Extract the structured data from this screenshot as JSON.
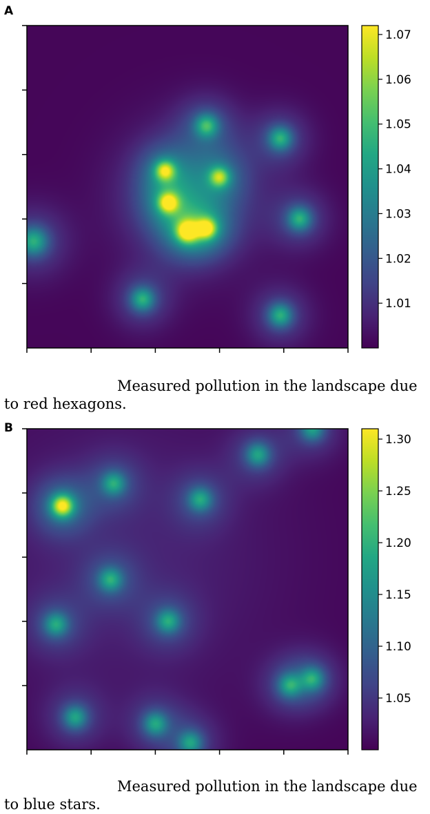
{
  "panels": [
    {
      "label": "A",
      "caption_lines": [
        "Measured pollution in the landscape due",
        "to red hexagons."
      ],
      "colormap": "viridis",
      "chart_data": {
        "type": "heatmap",
        "xlim": [
          0,
          1
        ],
        "ylim": [
          0,
          1
        ],
        "x_ticks": [
          0,
          0.2,
          0.4,
          0.6,
          0.8,
          1.0
        ],
        "y_ticks": [
          0.2,
          0.4,
          0.6,
          0.8,
          1.0
        ],
        "tick_labels_shown": false,
        "colorbar": {
          "vmin": 1.0,
          "vmax": 1.072,
          "ticks": [
            1.01,
            1.02,
            1.03,
            1.04,
            1.05,
            1.06,
            1.07
          ],
          "tick_labels": [
            "1.01",
            "1.02",
            "1.03",
            "1.04",
            "1.05",
            "1.06",
            "1.07"
          ]
        },
        "background_value": 1.001,
        "peaks": [
          {
            "x": 0.56,
            "y": 0.69,
            "amp": 0.045,
            "spread": 0.025
          },
          {
            "x": 0.79,
            "y": 0.65,
            "amp": 0.045,
            "spread": 0.025
          },
          {
            "x": 0.43,
            "y": 0.55,
            "amp": 0.055,
            "spread": 0.022
          },
          {
            "x": 0.6,
            "y": 0.53,
            "amp": 0.05,
            "spread": 0.022
          },
          {
            "x": 0.44,
            "y": 0.45,
            "amp": 0.057,
            "spread": 0.022
          },
          {
            "x": 0.85,
            "y": 0.4,
            "amp": 0.045,
            "spread": 0.025
          },
          {
            "x": 0.5,
            "y": 0.36,
            "amp": 0.062,
            "spread": 0.024
          },
          {
            "x": 0.56,
            "y": 0.37,
            "amp": 0.056,
            "spread": 0.022
          },
          {
            "x": 0.02,
            "y": 0.33,
            "amp": 0.045,
            "spread": 0.03
          },
          {
            "x": 0.36,
            "y": 0.15,
            "amp": 0.045,
            "spread": 0.025
          },
          {
            "x": 0.79,
            "y": 0.1,
            "amp": 0.045,
            "spread": 0.025
          }
        ],
        "broad_glow": {
          "x": 0.51,
          "y": 0.47,
          "amp": 0.022,
          "spread": 0.14
        }
      }
    },
    {
      "label": "B",
      "caption_lines": [
        "Measured pollution in the landscape due",
        "to blue stars."
      ],
      "colormap": "viridis",
      "chart_data": {
        "type": "heatmap",
        "xlim": [
          0,
          1
        ],
        "ylim": [
          0,
          1
        ],
        "x_ticks": [
          0,
          0.2,
          0.4,
          0.6,
          0.8,
          1.0
        ],
        "y_ticks": [
          0.2,
          0.4,
          0.6,
          0.8,
          1.0
        ],
        "tick_labels_shown": false,
        "colorbar": {
          "vmin": 1.0,
          "vmax": 1.31,
          "ticks": [
            1.05,
            1.1,
            1.15,
            1.2,
            1.25,
            1.3
          ],
          "tick_labels": [
            "1.05",
            "1.10",
            "1.15",
            "1.20",
            "1.25",
            "1.30"
          ]
        },
        "background_value": 1.003,
        "peaks": [
          {
            "x": 0.89,
            "y": 1.0,
            "amp": 0.17,
            "spread": 0.025
          },
          {
            "x": 0.72,
            "y": 0.92,
            "amp": 0.17,
            "spread": 0.025
          },
          {
            "x": 0.27,
            "y": 0.83,
            "amp": 0.17,
            "spread": 0.025
          },
          {
            "x": 0.54,
            "y": 0.78,
            "amp": 0.17,
            "spread": 0.025
          },
          {
            "x": 0.11,
            "y": 0.76,
            "amp": 0.3,
            "spread": 0.025
          },
          {
            "x": 0.26,
            "y": 0.53,
            "amp": 0.17,
            "spread": 0.025
          },
          {
            "x": 0.09,
            "y": 0.39,
            "amp": 0.17,
            "spread": 0.025
          },
          {
            "x": 0.44,
            "y": 0.4,
            "amp": 0.17,
            "spread": 0.025
          },
          {
            "x": 0.82,
            "y": 0.2,
            "amp": 0.17,
            "spread": 0.025
          },
          {
            "x": 0.89,
            "y": 0.22,
            "amp": 0.17,
            "spread": 0.025
          },
          {
            "x": 0.15,
            "y": 0.1,
            "amp": 0.17,
            "spread": 0.025
          },
          {
            "x": 0.4,
            "y": 0.08,
            "amp": 0.17,
            "spread": 0.025
          },
          {
            "x": 0.51,
            "y": 0.02,
            "amp": 0.17,
            "spread": 0.025
          }
        ],
        "broad_glow": {
          "x": 0.3,
          "y": 0.6,
          "amp": 0.03,
          "spread": 0.35
        }
      }
    }
  ]
}
